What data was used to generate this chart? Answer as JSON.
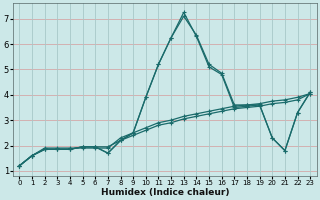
{
  "xlabel": "Humidex (Indice chaleur)",
  "bg_color": "#cce8e8",
  "grid_color_h": "#d4a8a8",
  "grid_color_v": "#a8c8c8",
  "line_color": "#1a6b6b",
  "xlim": [
    -0.5,
    23.5
  ],
  "ylim": [
    0.8,
    7.6
  ],
  "xticks": [
    0,
    1,
    2,
    3,
    4,
    5,
    6,
    7,
    8,
    9,
    10,
    11,
    12,
    13,
    14,
    15,
    16,
    17,
    18,
    19,
    20,
    21,
    22,
    23
  ],
  "yticks": [
    1,
    2,
    3,
    4,
    5,
    6,
    7
  ],
  "lines": [
    {
      "x": [
        0,
        1,
        2,
        3,
        4,
        5,
        6,
        7,
        8,
        9,
        10,
        11,
        12,
        13,
        14,
        15,
        16,
        17,
        18,
        19,
        20,
        21,
        22,
        23
      ],
      "y": [
        1.2,
        1.6,
        1.9,
        1.9,
        1.9,
        1.9,
        1.9,
        1.9,
        2.3,
        2.5,
        2.7,
        2.9,
        3.0,
        3.15,
        3.25,
        3.35,
        3.45,
        3.55,
        3.6,
        3.65,
        3.75,
        3.8,
        3.9,
        4.05
      ]
    },
    {
      "x": [
        0,
        1,
        2,
        3,
        4,
        5,
        6,
        7,
        8,
        9,
        10,
        11,
        12,
        13,
        14,
        15,
        16,
        17,
        18,
        19,
        20,
        21,
        22,
        23
      ],
      "y": [
        1.2,
        1.6,
        1.85,
        1.85,
        1.85,
        1.95,
        1.95,
        1.95,
        2.2,
        2.4,
        2.6,
        2.8,
        2.9,
        3.05,
        3.15,
        3.25,
        3.35,
        3.45,
        3.5,
        3.55,
        3.65,
        3.7,
        3.8,
        4.05
      ]
    },
    {
      "x": [
        0,
        1,
        2,
        3,
        4,
        5,
        6,
        7,
        8,
        9,
        10,
        11,
        12,
        13,
        14,
        15,
        16,
        17,
        18,
        19,
        20,
        21,
        22,
        23
      ],
      "y": [
        1.2,
        1.6,
        1.85,
        1.85,
        1.85,
        1.95,
        1.95,
        1.7,
        2.2,
        2.5,
        3.9,
        5.2,
        6.25,
        7.25,
        6.3,
        5.1,
        4.8,
        3.5,
        3.55,
        3.6,
        2.3,
        1.8,
        3.3,
        4.1
      ]
    },
    {
      "x": [
        0,
        1,
        2,
        3,
        4,
        5,
        6,
        7,
        8,
        9,
        10,
        11,
        12,
        13,
        14,
        15,
        16,
        17,
        18,
        19,
        20,
        21,
        22,
        23
      ],
      "y": [
        1.2,
        1.6,
        1.85,
        1.85,
        1.85,
        1.95,
        1.95,
        1.7,
        2.2,
        2.5,
        3.9,
        5.2,
        6.25,
        7.1,
        6.35,
        5.2,
        4.85,
        3.6,
        3.6,
        3.6,
        2.3,
        1.8,
        3.3,
        4.1
      ]
    }
  ]
}
